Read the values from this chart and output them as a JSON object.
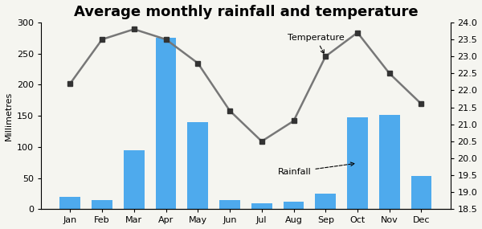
{
  "title": "Average monthly rainfall and temperature",
  "months": [
    "Jan",
    "Feb",
    "Mar",
    "Apr",
    "May",
    "Jun",
    "Jul",
    "Aug",
    "Sep",
    "Oct",
    "Nov",
    "Dec"
  ],
  "rainfall": [
    20,
    15,
    95,
    275,
    140,
    15,
    10,
    12,
    25,
    148,
    152,
    53
  ],
  "temperature": [
    22.2,
    23.5,
    23.8,
    23.5,
    22.8,
    21.4,
    20.5,
    21.1,
    23.0,
    23.7,
    22.5,
    21.6
  ],
  "bar_color": "#4eaaed",
  "line_color": "#777777",
  "marker_color": "#333333",
  "ylabel_left": "Millimetres",
  "ylim_left": [
    0,
    300
  ],
  "yticks_left": [
    0,
    50,
    100,
    150,
    200,
    250,
    300
  ],
  "ylim_right": [
    18.5,
    24.0
  ],
  "yticks_right": [
    18.5,
    19.0,
    19.5,
    20.0,
    20.5,
    21.0,
    21.5,
    22.0,
    22.5,
    23.0,
    23.5,
    24.0
  ],
  "background_color": "#f5f5f0",
  "title_fontsize": 13,
  "label_fontsize": 8,
  "tick_fontsize": 8
}
